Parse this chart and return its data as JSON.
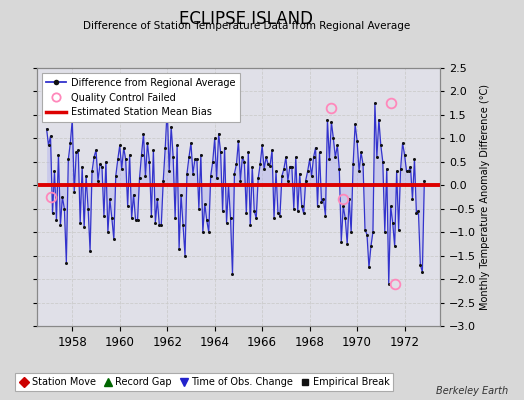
{
  "title": "ECLIPSE ISLAND",
  "subtitle": "Difference of Station Temperature Data from Regional Average",
  "ylabel_right": "Monthly Temperature Anomaly Difference (°C)",
  "xlim": [
    1956.5,
    1973.5
  ],
  "ylim": [
    -3,
    2.5
  ],
  "yticks": [
    -3,
    -2.5,
    -2,
    -1.5,
    -1,
    -0.5,
    0,
    0.5,
    1,
    1.5,
    2,
    2.5
  ],
  "xticks": [
    1958,
    1960,
    1962,
    1964,
    1966,
    1968,
    1970,
    1972
  ],
  "bias_line_y": 0.0,
  "bias_line_color": "#dd0000",
  "line_color": "#3333cc",
  "fill_color": "#aaaaee",
  "marker_color": "#111111",
  "background_color": "#d8d8d8",
  "plot_bg_color": "#e0e0e8",
  "grid_color": "#cccccc",
  "berkeley_earth_text": "Berkeley Earth",
  "qc_fail_color": "#ff88bb",
  "qc_fail_points": [
    [
      1957.083,
      -0.25
    ],
    [
      1968.917,
      1.65
    ],
    [
      1969.417,
      -0.3
    ],
    [
      1971.417,
      1.75
    ],
    [
      1971.583,
      -2.1
    ]
  ],
  "time_series": [
    1956.917,
    1957.0,
    1957.083,
    1957.167,
    1957.25,
    1957.333,
    1957.417,
    1957.5,
    1957.583,
    1957.667,
    1957.75,
    1957.833,
    1957.917,
    1958.0,
    1958.083,
    1958.167,
    1958.25,
    1958.333,
    1958.417,
    1958.5,
    1958.583,
    1958.667,
    1958.75,
    1958.833,
    1958.917,
    1959.0,
    1959.083,
    1959.167,
    1959.25,
    1959.333,
    1959.417,
    1959.5,
    1959.583,
    1959.667,
    1959.75,
    1959.833,
    1959.917,
    1960.0,
    1960.083,
    1960.167,
    1960.25,
    1960.333,
    1960.417,
    1960.5,
    1960.583,
    1960.667,
    1960.75,
    1960.833,
    1960.917,
    1961.0,
    1961.083,
    1961.167,
    1961.25,
    1961.333,
    1961.417,
    1961.5,
    1961.583,
    1961.667,
    1961.75,
    1961.833,
    1961.917,
    1962.0,
    1962.083,
    1962.167,
    1962.25,
    1962.333,
    1962.417,
    1962.5,
    1962.583,
    1962.667,
    1962.75,
    1962.833,
    1962.917,
    1963.0,
    1963.083,
    1963.167,
    1963.25,
    1963.333,
    1963.417,
    1963.5,
    1963.583,
    1963.667,
    1963.75,
    1963.833,
    1963.917,
    1964.0,
    1964.083,
    1964.167,
    1964.25,
    1964.333,
    1964.417,
    1964.5,
    1964.583,
    1964.667,
    1964.75,
    1964.833,
    1964.917,
    1965.0,
    1965.083,
    1965.167,
    1965.25,
    1965.333,
    1965.417,
    1965.5,
    1965.583,
    1965.667,
    1965.75,
    1965.833,
    1965.917,
    1966.0,
    1966.083,
    1966.167,
    1966.25,
    1966.333,
    1966.417,
    1966.5,
    1966.583,
    1966.667,
    1966.75,
    1966.833,
    1966.917,
    1967.0,
    1967.083,
    1967.167,
    1967.25,
    1967.333,
    1967.417,
    1967.5,
    1967.583,
    1967.667,
    1967.75,
    1967.833,
    1967.917,
    1968.0,
    1968.083,
    1968.167,
    1968.25,
    1968.333,
    1968.417,
    1968.5,
    1968.583,
    1968.667,
    1968.75,
    1968.833,
    1968.917,
    1969.0,
    1969.083,
    1969.167,
    1969.25,
    1969.333,
    1969.417,
    1969.5,
    1969.583,
    1969.667,
    1969.75,
    1969.833,
    1969.917,
    1970.0,
    1970.083,
    1970.167,
    1970.25,
    1970.333,
    1970.417,
    1970.5,
    1970.583,
    1970.667,
    1970.75,
    1970.833,
    1970.917,
    1971.0,
    1971.083,
    1971.167,
    1971.25,
    1971.333,
    1971.417,
    1971.5,
    1971.583,
    1971.667,
    1971.75,
    1971.833,
    1971.917,
    1972.0,
    1972.083,
    1972.167,
    1972.25,
    1972.333,
    1972.417,
    1972.5,
    1972.583,
    1972.667,
    1972.75,
    1972.833
  ],
  "values": [
    1.2,
    0.85,
    1.05,
    -0.6,
    0.3,
    -0.75,
    0.65,
    -0.85,
    -0.25,
    -0.5,
    -1.65,
    0.55,
    0.9,
    1.4,
    -0.15,
    0.7,
    0.75,
    -0.8,
    0.4,
    -0.9,
    0.2,
    -0.5,
    -1.4,
    0.3,
    0.6,
    0.75,
    0.1,
    0.45,
    0.4,
    -0.65,
    0.5,
    -1.0,
    -0.3,
    -0.7,
    -1.15,
    0.2,
    0.55,
    0.85,
    0.35,
    0.8,
    0.55,
    -0.45,
    0.65,
    -0.7,
    -0.2,
    -0.75,
    -0.75,
    0.15,
    0.65,
    1.1,
    0.2,
    0.9,
    0.5,
    -0.65,
    0.75,
    -0.8,
    -0.3,
    -0.85,
    -0.85,
    0.1,
    0.8,
    1.65,
    0.3,
    1.25,
    0.6,
    -0.7,
    0.85,
    -1.35,
    -0.2,
    -0.85,
    -1.5,
    0.25,
    0.6,
    0.9,
    0.25,
    0.55,
    0.55,
    -0.5,
    0.65,
    -1.0,
    -0.4,
    -0.75,
    -1.0,
    0.2,
    0.5,
    1.0,
    0.15,
    1.1,
    0.7,
    -0.55,
    0.8,
    -0.8,
    0.0,
    -0.7,
    -1.9,
    0.25,
    0.45,
    0.95,
    0.1,
    0.6,
    0.5,
    -0.6,
    0.7,
    -0.85,
    0.4,
    -0.55,
    -0.7,
    0.15,
    0.45,
    0.85,
    0.35,
    0.6,
    0.45,
    0.42,
    0.75,
    -0.7,
    0.3,
    -0.6,
    -0.65,
    0.2,
    0.35,
    0.6,
    0.1,
    0.4,
    0.4,
    -0.5,
    0.6,
    -0.55,
    0.25,
    -0.45,
    -0.6,
    0.1,
    0.3,
    0.55,
    0.2,
    0.6,
    0.8,
    -0.45,
    0.7,
    -0.35,
    -0.3,
    -0.65,
    1.4,
    0.55,
    1.35,
    1.0,
    0.6,
    0.85,
    0.35,
    -1.2,
    -0.45,
    -0.7,
    -1.25,
    -0.3,
    -1.0,
    0.45,
    1.3,
    0.95,
    0.3,
    0.7,
    0.45,
    -0.95,
    -1.05,
    -1.75,
    -1.3,
    -1.0,
    1.75,
    0.6,
    1.4,
    0.85,
    0.5,
    -1.0,
    0.35,
    -2.1,
    -0.45,
    -0.8,
    -1.3,
    0.3,
    -0.95,
    0.35,
    0.9,
    0.65,
    0.3,
    0.3,
    0.4,
    -0.3,
    0.55,
    -0.6,
    -0.55,
    -1.7,
    -1.85,
    0.1
  ]
}
